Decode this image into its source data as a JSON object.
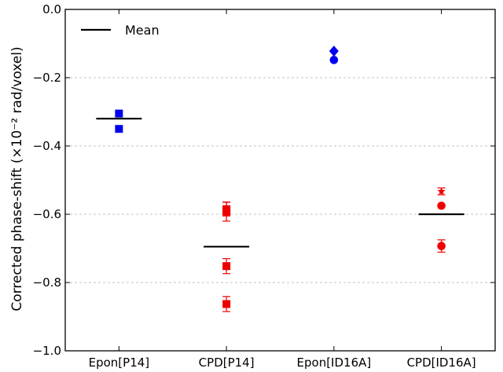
{
  "chart_data": {
    "type": "scatter",
    "ylabel": "Corrected phase-shift (×10⁻² rad/voxel)",
    "ylim": [
      -1.0,
      0.0
    ],
    "yticks": [
      -1.0,
      -0.8,
      -0.6,
      -0.4,
      -0.2,
      0.0
    ],
    "ytick_labels": [
      "−1.0",
      "−0.8",
      "−0.6",
      "−0.4",
      "−0.2",
      "0.0"
    ],
    "categories": [
      "Epon[P14]",
      "CPD[P14]",
      "Epon[ID16A]",
      "CPD[ID16A]"
    ],
    "grid": "horizontal dashed",
    "legend": {
      "position": "top-left",
      "entries": [
        {
          "label": "Mean"
        }
      ]
    },
    "means": [
      -0.32,
      -0.695,
      null,
      -0.6
    ],
    "series": [
      {
        "category": "Epon[P14]",
        "color": "#0000ee",
        "points": [
          {
            "marker": "square",
            "y": -0.305,
            "err": 0
          },
          {
            "marker": "square",
            "y": -0.35,
            "err": 0
          }
        ]
      },
      {
        "category": "CPD[P14]",
        "color": "#ee0000",
        "points": [
          {
            "marker": "square",
            "y": -0.585,
            "err": 0.02
          },
          {
            "marker": "square",
            "y": -0.592,
            "err": 0.028
          },
          {
            "marker": "square",
            "y": -0.752,
            "err": 0.022
          },
          {
            "marker": "square",
            "y": -0.863,
            "err": 0.022
          }
        ]
      },
      {
        "category": "Epon[ID16A]",
        "color": "#0000ee",
        "points": [
          {
            "marker": "diamond",
            "y": -0.122,
            "err": 0
          },
          {
            "marker": "circle",
            "y": -0.148,
            "err": 0
          }
        ]
      },
      {
        "category": "CPD[ID16A]",
        "color": "#ee0000",
        "points": [
          {
            "marker": "star",
            "y": -0.533,
            "err": 0.01
          },
          {
            "marker": "circle",
            "y": -0.575,
            "err": 0
          },
          {
            "marker": "circle",
            "y": -0.693,
            "err": 0.018
          }
        ]
      }
    ]
  }
}
